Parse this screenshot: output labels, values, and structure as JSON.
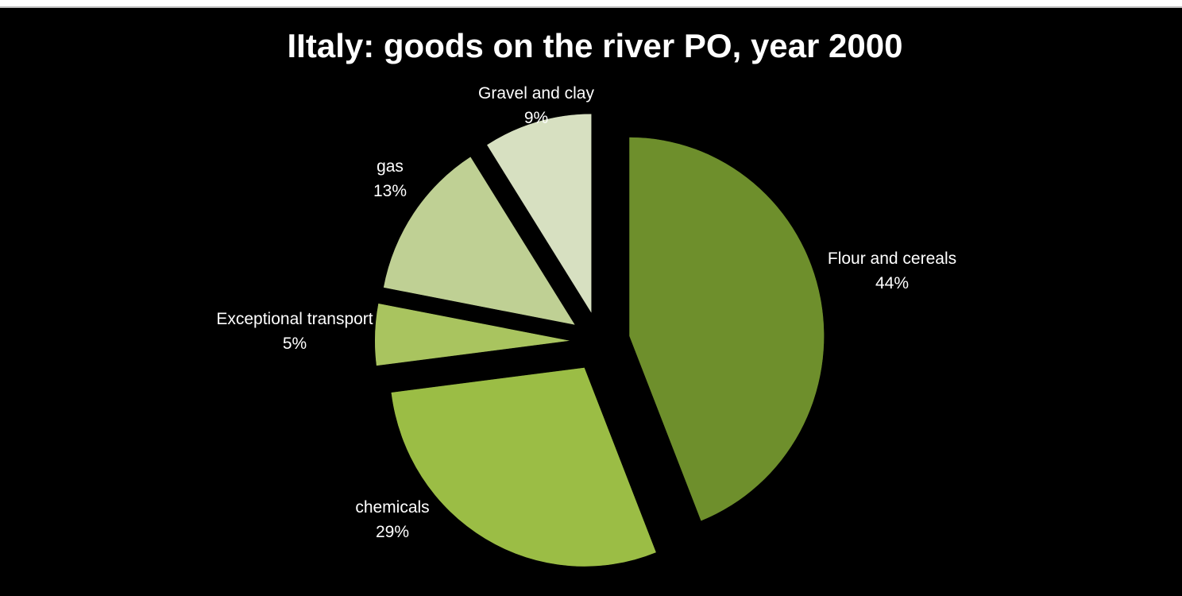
{
  "chart_data": {
    "type": "pie",
    "title": "IItaly: goods on the river PO, year 2000",
    "slices": [
      {
        "label": "Flour and cereals",
        "percent_label": "44%",
        "value": 44,
        "color": "#6e8f2c"
      },
      {
        "label": "chemicals",
        "percent_label": "29%",
        "value": 29,
        "color": "#9bbd45"
      },
      {
        "label": "Exceptional transport",
        "percent_label": "5%",
        "value": 5,
        "color": "#a9c45f"
      },
      {
        "label": "gas",
        "percent_label": "13%",
        "value": 13,
        "color": "#bfd094"
      },
      {
        "label": "Gravel and clay",
        "percent_label": "9%",
        "value": 9,
        "color": "#d7e0c1"
      }
    ],
    "exploded": true,
    "legend": "none",
    "data_labels": "outside"
  }
}
